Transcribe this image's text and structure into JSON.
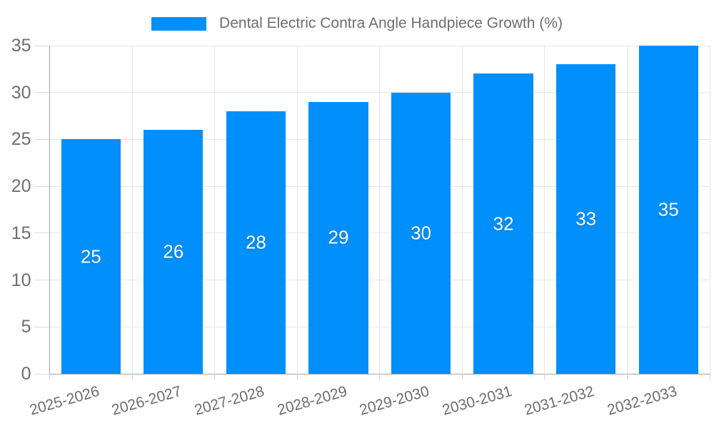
{
  "chart_data": {
    "type": "bar",
    "title": "Dental Electric Contra Angle Handpiece Growth (%)",
    "categories": [
      "2025-2026",
      "2026-2027",
      "2027-2028",
      "2028-2029",
      "2029-2030",
      "2030-2031",
      "2031-2032",
      "2032-2033"
    ],
    "values": [
      25,
      26,
      28,
      29,
      30,
      32,
      33,
      35
    ],
    "xlabel": "",
    "ylabel": "",
    "ylim": [
      0,
      35
    ],
    "yticks": [
      0,
      5,
      10,
      15,
      20,
      25,
      30,
      35
    ],
    "grid": true,
    "legend_position": "top-center",
    "data_labels": "white numbers centered inside bars",
    "bar_color": "#008ffb",
    "data_label_color": "#ffffff",
    "axis_text_color": "#6e6e6e",
    "grid_color": "#e7e7e7",
    "axis_line_color": "#a3a3a3"
  }
}
